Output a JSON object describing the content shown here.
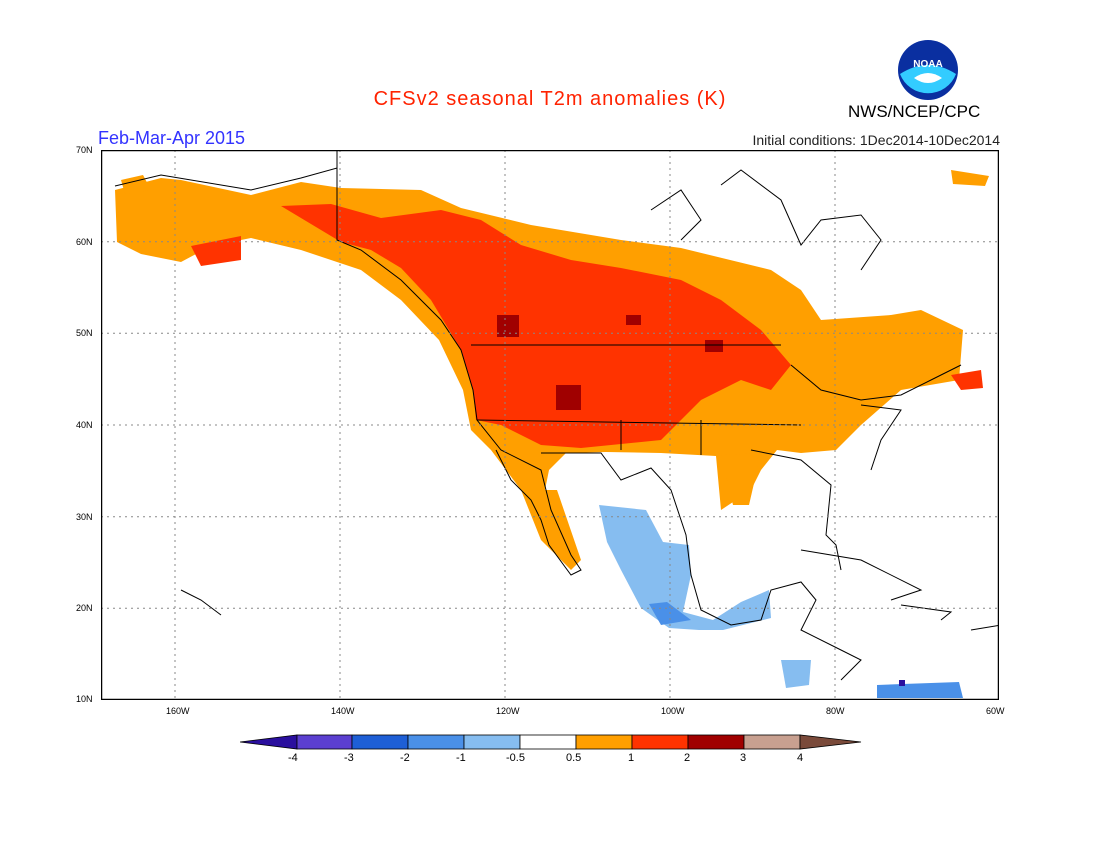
{
  "header": {
    "title": "CFSv2 seasonal T2m anomalies (K)",
    "period": "Feb-Mar-Apr 2015",
    "initial_conditions": "Initial conditions: 1Dec2014-10Dec2014",
    "org": "NWS/NCEP/CPC",
    "logo_text": "NOAA"
  },
  "axes": {
    "lat_labels": [
      "70N",
      "60N",
      "50N",
      "40N",
      "30N",
      "20N",
      "10N"
    ],
    "lon_labels": [
      "160W",
      "140W",
      "120W",
      "100W",
      "80W",
      "60W"
    ]
  },
  "colorbar": {
    "labels": [
      "-4",
      "-3",
      "-2",
      "-1",
      "-0.5",
      "0.5",
      "1",
      "2",
      "3",
      "4"
    ],
    "colors": [
      "#2a0f9e",
      "#5b3fd0",
      "#1e5fd6",
      "#4a90e8",
      "#86bdf0",
      "#ffffff",
      "#ff9f00",
      "#ff3300",
      "#a00000",
      "#c8a090",
      "#7a4a3a"
    ]
  },
  "legend": {
    "colors": {
      "lightblue": "#86bdf0",
      "blue": "#4a90e8",
      "orange": "#ff9f00",
      "red": "#ff3300",
      "darkred": "#a00000",
      "purple": "#2a0f9e"
    }
  }
}
